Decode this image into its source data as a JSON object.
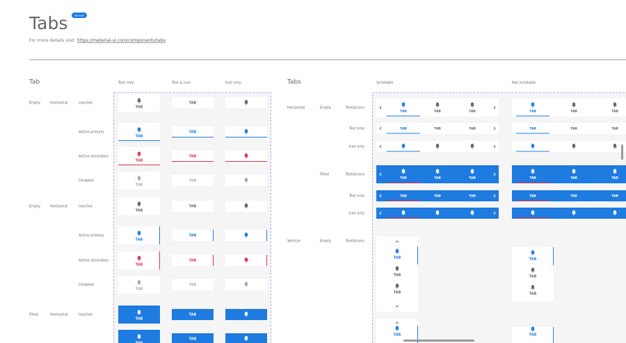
{
  "header": {
    "title": "Tabs",
    "badge": "Variants",
    "details_prefix": "For more details visit",
    "details_link": "https://material-ui.com/components/tabs"
  },
  "tab_label": "TAB",
  "tab_section": {
    "title": "Tab",
    "columns": [
      "Text only",
      "Text & icon",
      "Icon only"
    ],
    "groups": [
      {
        "labels": [
          "Empty",
          "Horizontal"
        ],
        "states": [
          "Inactive",
          "Active primary",
          "Active secondary",
          "Disabled"
        ]
      },
      {
        "labels": [
          "Empty",
          "Horizontal"
        ],
        "states": [
          "Inactive",
          "Active primary",
          "Active secondary",
          "Disabled"
        ]
      },
      {
        "labels": [
          "Filled",
          "Horizontal"
        ],
        "states": [
          "Inactive"
        ]
      }
    ]
  },
  "tabs_section": {
    "title": "Tabs",
    "columns": [
      "Scrollable",
      "Not scrollable"
    ],
    "rows": [
      {
        "labels": [
          "Horizontal",
          "Empty",
          "Text&Icons"
        ]
      },
      {
        "labels": [
          "Text only"
        ]
      },
      {
        "labels": [
          "Icon only"
        ]
      },
      {
        "labels": [
          "Filled",
          "Text&Icons"
        ]
      },
      {
        "labels": [
          "Text only"
        ]
      },
      {
        "labels": [
          "Icon only"
        ]
      },
      {
        "labels": [
          "Vertical",
          "Empty",
          "Text&Icons"
        ]
      }
    ]
  }
}
